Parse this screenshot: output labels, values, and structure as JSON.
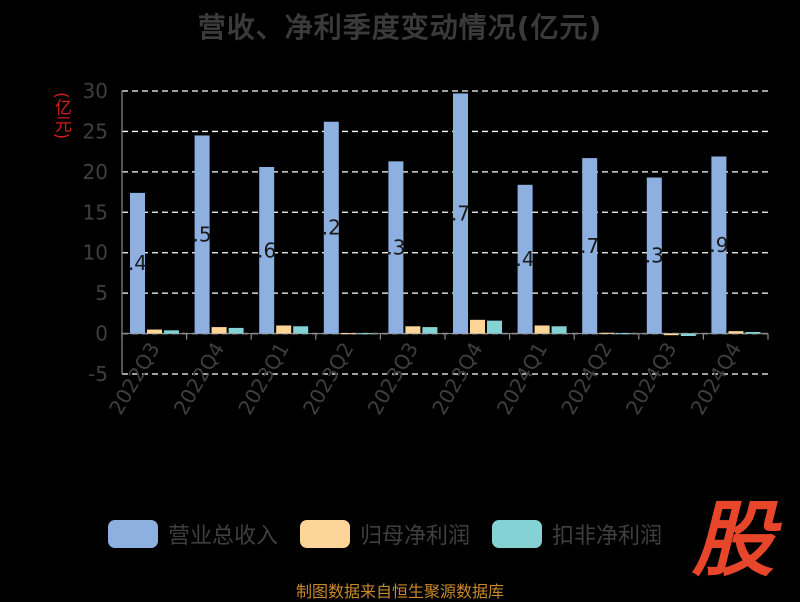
{
  "title": "营收、净利季度变动情况(亿元)",
  "y_unit": "(亿元)",
  "footer": "制图数据来自恒生聚源数据库",
  "logo_text": "股",
  "colors": {
    "background": "#000000",
    "revenue": "#8eb0e0",
    "net_profit": "#fdd598",
    "deducted_profit": "#84d2d4",
    "grid": "#ffffff",
    "axis": "#888888"
  },
  "chart_data": {
    "type": "bar",
    "title": "营收、净利季度变动情况(亿元)",
    "ylabel": "(亿元)",
    "xlabel": "",
    "ylim": [
      -5,
      30
    ],
    "yticks": [
      "30",
      "25",
      "20",
      "15",
      "10",
      "5",
      "0",
      "-5"
    ],
    "ytick_values": [
      30,
      25,
      20,
      15,
      10,
      5,
      0,
      -5
    ],
    "grid": true,
    "legend_position": "bottom",
    "categories": [
      "2022Q3",
      "2022Q4",
      "2023Q1",
      "2023Q2",
      "2023Q3",
      "2023Q4",
      "2024Q1",
      "2024Q2",
      "2024Q3",
      "2024Q4"
    ],
    "series": [
      {
        "name": "营业总收入",
        "values": [
          17.4,
          24.5,
          20.6,
          26.2,
          21.3,
          29.7,
          18.4,
          21.7,
          19.3,
          21.9
        ]
      },
      {
        "name": "归母净利润",
        "values": [
          0.5,
          0.8,
          1.0,
          0.05,
          0.9,
          1.7,
          1.0,
          0.1,
          -0.2,
          0.3
        ]
      },
      {
        "name": "扣非净利润",
        "values": [
          0.4,
          0.7,
          0.9,
          0.05,
          0.8,
          1.6,
          0.9,
          0.05,
          -0.3,
          0.2
        ]
      }
    ],
    "data_labels": [
      ".4",
      ".5",
      ".6",
      ".2",
      ".3",
      ".7",
      ".4",
      ".7",
      ".3",
      ".9"
    ]
  }
}
